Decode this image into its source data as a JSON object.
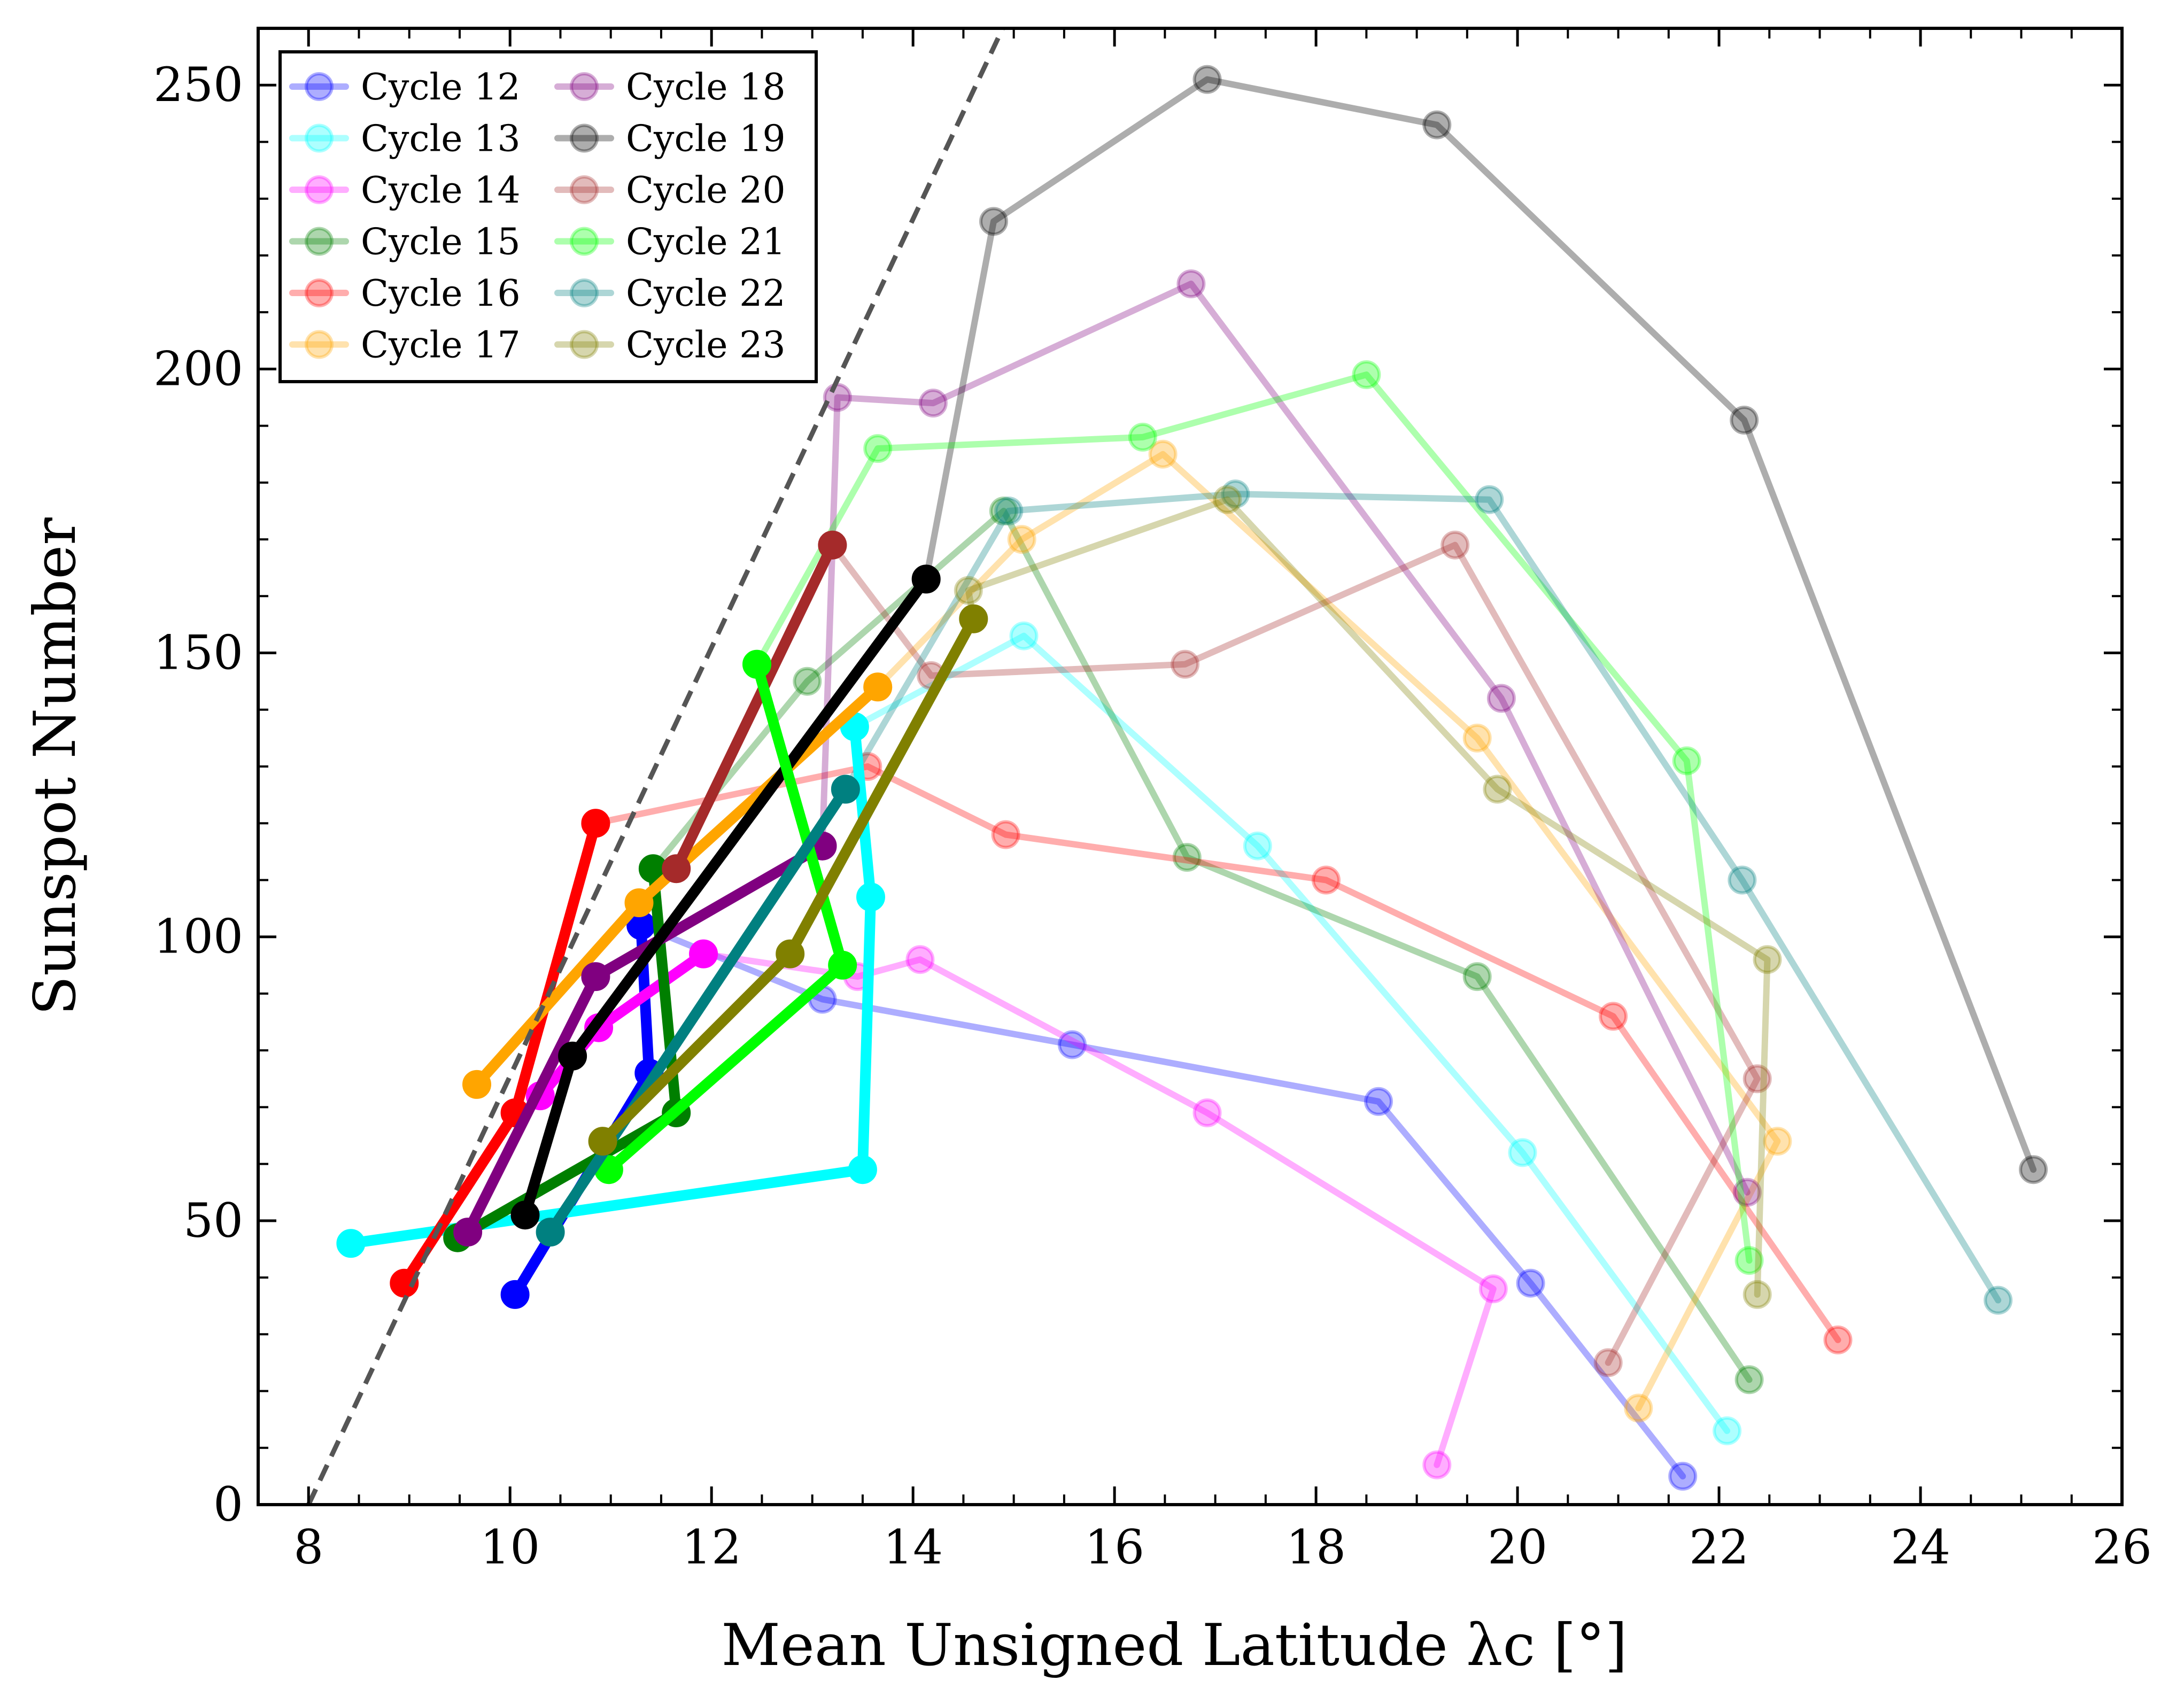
{
  "chart_data": {
    "type": "line",
    "title": "",
    "xlabel": "Mean Unsigned Latitude λc [°]",
    "ylabel": "Sunspot Number",
    "xlim": [
      7.5,
      26
    ],
    "ylim": [
      0,
      260
    ],
    "xticks": [
      8,
      10,
      12,
      14,
      16,
      18,
      20,
      22,
      24,
      26
    ],
    "yticks": [
      0,
      50,
      100,
      150,
      200,
      250
    ],
    "legend_position": "top-left",
    "reference_line": {
      "style": "dashed",
      "color": "#555555",
      "points": [
        [
          8.0,
          0
        ],
        [
          14.89,
          260
        ]
      ]
    },
    "series": [
      {
        "name": "Cycle 12",
        "color": "#0000ff",
        "rising": {
          "x": [
            10.05,
            11.38,
            11.3
          ],
          "y": [
            37,
            76,
            102
          ]
        },
        "falling": {
          "x": [
            11.3,
            13.1,
            15.58,
            18.62,
            20.13,
            21.64
          ],
          "y": [
            102,
            89,
            81,
            71,
            39,
            5
          ]
        }
      },
      {
        "name": "Cycle 13",
        "color": "#00ffff",
        "rising": {
          "x": [
            8.42,
            13.5,
            13.58,
            13.42
          ],
          "y": [
            46,
            59,
            107,
            137
          ]
        },
        "falling": {
          "x": [
            13.42,
            15.1,
            17.42,
            20.05,
            22.08
          ],
          "y": [
            137,
            153,
            116,
            62,
            13
          ]
        }
      },
      {
        "name": "Cycle 14",
        "color": "#ff00ff",
        "rising": {
          "x": [
            10.3,
            10.88,
            11.92
          ],
          "y": [
            72,
            84,
            97
          ]
        },
        "falling": {
          "x": [
            11.92,
            13.45,
            14.07,
            16.92,
            19.76,
            19.2
          ],
          "y": [
            97,
            93,
            96,
            69,
            38,
            7
          ]
        }
      },
      {
        "name": "Cycle 15",
        "color": "#007f00",
        "rising": {
          "x": [
            9.48,
            11.65,
            11.42
          ],
          "y": [
            47,
            69,
            112
          ]
        },
        "falling": {
          "x": [
            11.42,
            12.95,
            14.9,
            16.72,
            19.6,
            22.3
          ],
          "y": [
            112,
            145,
            175,
            114,
            93,
            22
          ]
        }
      },
      {
        "name": "Cycle 16",
        "color": "#ff0000",
        "rising": {
          "x": [
            8.95,
            10.05,
            10.85
          ],
          "y": [
            39,
            69,
            120
          ]
        },
        "falling": {
          "x": [
            10.85,
            13.55,
            14.92,
            18.1,
            20.95,
            23.18
          ],
          "y": [
            120,
            130,
            118,
            110,
            86,
            29
          ]
        }
      },
      {
        "name": "Cycle 17",
        "color": "#ffa500",
        "rising": {
          "x": [
            9.67,
            11.28,
            13.65
          ],
          "y": [
            74,
            106,
            144
          ]
        },
        "falling": {
          "x": [
            13.65,
            15.08,
            16.48,
            19.6,
            22.58,
            21.2
          ],
          "y": [
            144,
            170,
            185,
            135,
            64,
            17
          ]
        }
      },
      {
        "name": "Cycle 18",
        "color": "#800080",
        "rising": {
          "x": [
            9.58,
            10.85,
            13.1
          ],
          "y": [
            48,
            93,
            116
          ]
        },
        "falling": {
          "x": [
            13.1,
            13.25,
            14.2,
            16.76,
            19.84,
            22.28
          ],
          "y": [
            116,
            195,
            194,
            215,
            142,
            55
          ]
        }
      },
      {
        "name": "Cycle 19",
        "color": "#000000",
        "rising": {
          "x": [
            10.15,
            10.62,
            14.13
          ],
          "y": [
            51,
            79,
            163
          ]
        },
        "falling": {
          "x": [
            14.13,
            14.8,
            16.92,
            19.2,
            22.25,
            25.12
          ],
          "y": [
            163,
            226,
            251,
            243,
            191,
            59
          ]
        }
      },
      {
        "name": "Cycle 20",
        "color": "#a52a2a",
        "rising": {
          "x": [
            11.65,
            13.2
          ],
          "y": [
            112,
            169
          ]
        },
        "falling": {
          "x": [
            13.2,
            14.18,
            16.7,
            19.38,
            22.38,
            20.9
          ],
          "y": [
            169,
            146,
            148,
            169,
            75,
            25
          ]
        }
      },
      {
        "name": "Cycle 21",
        "color": "#00ff00",
        "rising": {
          "x": [
            12.45,
            13.3,
            10.98
          ],
          "y": [
            148,
            95,
            59
          ]
        },
        "falling": {
          "x": [
            12.45,
            13.65,
            16.28,
            18.5,
            21.68,
            22.3
          ],
          "y": [
            148,
            186,
            188,
            199,
            131,
            43
          ]
        }
      },
      {
        "name": "Cycle 22",
        "color": "#008080",
        "rising": {
          "x": [
            10.4,
            13.33
          ],
          "y": [
            48,
            126
          ]
        },
        "falling": {
          "x": [
            13.33,
            14.95,
            17.2,
            19.72,
            22.23,
            24.77
          ],
          "y": [
            126,
            175,
            178,
            177,
            110,
            36
          ]
        }
      },
      {
        "name": "Cycle 23",
        "color": "#808000",
        "rising": {
          "x": [
            10.92,
            12.78,
            14.6
          ],
          "y": [
            64,
            97,
            156
          ]
        },
        "falling": {
          "x": [
            14.6,
            14.55,
            17.12,
            19.8,
            22.48,
            22.38
          ],
          "y": [
            156,
            161,
            177,
            126,
            96,
            37
          ]
        }
      }
    ]
  }
}
